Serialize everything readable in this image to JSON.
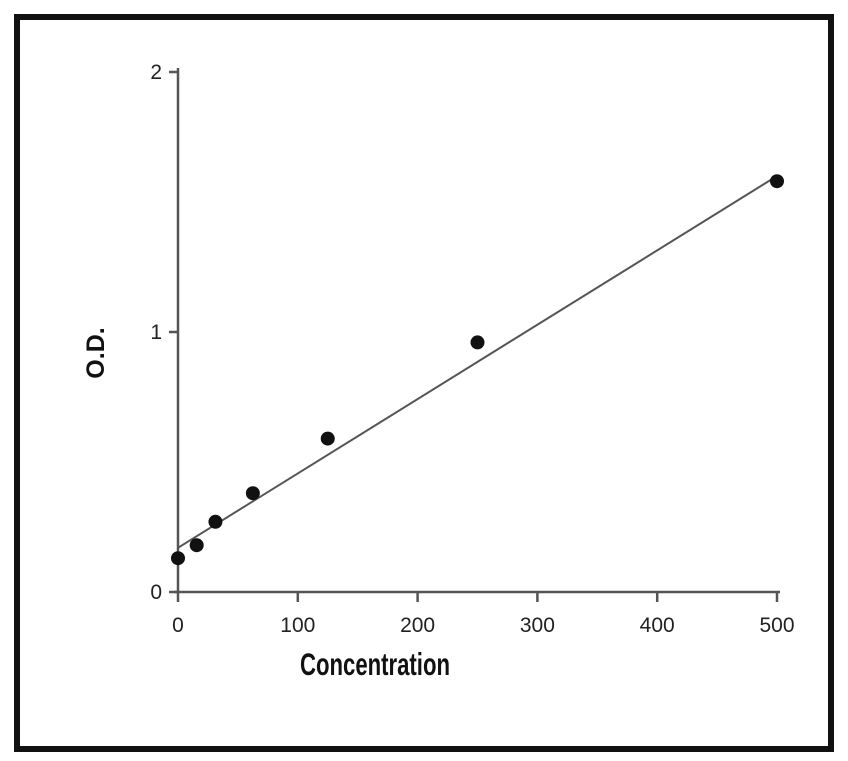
{
  "chart_data": {
    "type": "scatter",
    "title": "",
    "xlabel": "Concentration",
    "ylabel": "O.D.",
    "xlim": [
      0,
      500
    ],
    "ylim": [
      0,
      2
    ],
    "x_ticks": [
      "0",
      "100",
      "200",
      "300",
      "400",
      "500"
    ],
    "y_ticks": [
      "0",
      "1",
      "2"
    ],
    "grid": false,
    "series": [
      {
        "x": [
          0,
          15.6,
          31.25,
          62.5,
          125,
          250,
          500
        ],
        "y": [
          0.13,
          0.18,
          0.27,
          0.38,
          0.59,
          0.96,
          1.58
        ]
      }
    ],
    "fit_line": {
      "x": [
        0,
        500
      ],
      "y": [
        0.17,
        1.6
      ]
    },
    "colors": {
      "points": "#111111",
      "fit_line": "#555555",
      "axes": "#555555"
    }
  }
}
